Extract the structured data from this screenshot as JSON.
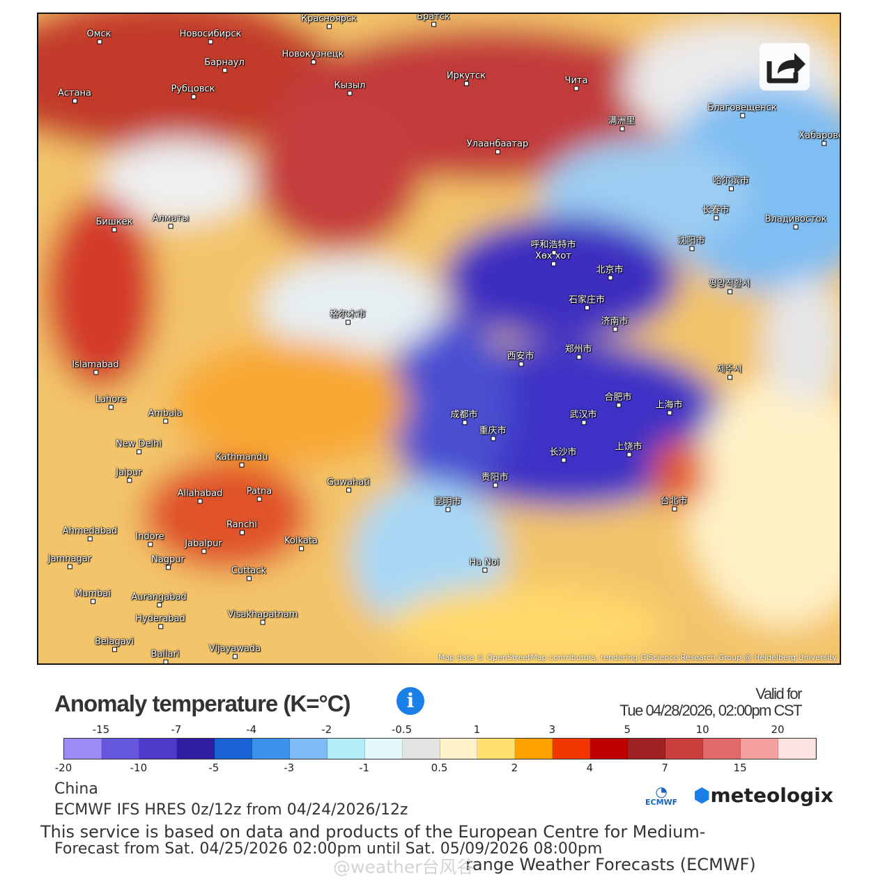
{
  "map": {
    "attribution": "Map data © OpenStreetMap contributors, rendering GIScience Research Group @ Heidelberg University",
    "cities": [
      "Омск",
      "Новосибирск",
      "Красноярск",
      "Братск",
      "Новокузнецк",
      "Барнаул",
      "Иркутск",
      "Астана",
      "Рубцовск",
      "Кызыл",
      "Чита",
      "Благовещенск",
      "Хабаровск",
      "Улаанбаатар",
      "满洲里",
      "哈尔滨市",
      "长春市",
      "Владивосток",
      "沈阳市",
      "呼和浩特市",
      "Хөх хот",
      "北京市",
      "평양직할시",
      "石家庄市",
      "济南市",
      "西安市",
      "郑州市",
      "제주시",
      "合肥市",
      "上海市",
      "武汉市",
      "成都市",
      "重庆市",
      "长沙市",
      "上饶市",
      "贵阳市",
      "昆明市",
      "台北市",
      "Бишкек",
      "Алматы",
      "Islamabad",
      "Lahore",
      "Ambala",
      "New Delhi",
      "Kathmandu",
      "Guwahati",
      "Jaipur",
      "Allahabad",
      "Patna",
      "Ranchi",
      "Kolkata",
      "Ahmedabad",
      "Indore",
      "Jabalpur",
      "Nagpur",
      "Jamnagar",
      "Cuttack",
      "Mumbai",
      "Aurangabad",
      "Hyderabad",
      "Visakhapatnam",
      "Belagavi",
      "Vijayawada",
      "Ballari",
      "Ha Noi",
      "格尔木市"
    ]
  },
  "share_icon": "share-icon",
  "legend": {
    "title": "Anomaly temperature (K=°C)",
    "info_icon": "info-icon",
    "valid_label": "Valid for",
    "valid_time": "Tue 04/28/2026, 02:00pm CST",
    "colors": [
      "#9d8cf8",
      "#6658de",
      "#4b3bc8",
      "#2d1fa0",
      "#1a63d4",
      "#3d92ec",
      "#7dbcf5",
      "#b3ecf7",
      "#e2f6fc",
      "#e3e3e3",
      "#fff2c9",
      "#ffe06f",
      "#ffa200",
      "#f23700",
      "#c10000",
      "#9e2020",
      "#cc3e3e",
      "#e46a6a",
      "#f7a0a0",
      "#fde2e2"
    ],
    "top_ticks": [
      "-15",
      "-7",
      "-4",
      "-2",
      "-0.5",
      "1",
      "3",
      "5",
      "10",
      "20"
    ],
    "bottom_ticks": [
      "-20",
      "-10",
      "-5",
      "-3",
      "-1",
      "0.5",
      "2",
      "4",
      "7",
      "15"
    ]
  },
  "footer": {
    "region": "China",
    "model": "ECMWF IFS HRES 0z/12z from 04/24/2026/12z",
    "disclaimer": "This service is based on data and products of the European Centre for Medium-",
    "forecast_range": "Forecast from Sat. 04/25/2026 02:00pm until Sat. 05/09/2026 08:00pm",
    "disclaimer_end": "range Weather Forecasts (ECMWF)",
    "watermark": "@weather台风谷",
    "logo_ecmwf": "ECMWF",
    "logo_meteologix": "meteologix"
  }
}
